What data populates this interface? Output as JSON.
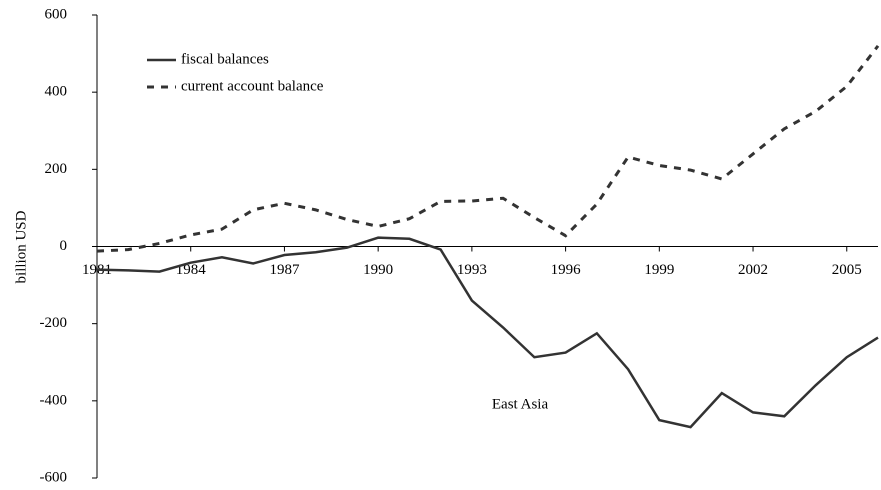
{
  "chart_data": {
    "type": "line",
    "x": [
      1981,
      1982,
      1983,
      1984,
      1985,
      1986,
      1987,
      1988,
      1989,
      1990,
      1991,
      1992,
      1993,
      1994,
      1995,
      1996,
      1997,
      1998,
      1999,
      2000,
      2001,
      2002,
      2003,
      2004,
      2005,
      2006
    ],
    "series": [
      {
        "name": "fiscal balances",
        "color": "#333333",
        "dash": false,
        "values": [
          -60,
          -62,
          -65,
          -42,
          -28,
          -44,
          -22,
          -15,
          -3,
          23,
          20,
          -8,
          -140,
          -210,
          -287,
          -275,
          -225,
          -318,
          -450,
          -468,
          -380,
          -430,
          -440,
          -360,
          -287,
          -236
        ]
      },
      {
        "name": "current account balance",
        "color": "#333333",
        "dash": true,
        "values": [
          -12,
          -8,
          8,
          30,
          45,
          95,
          112,
          95,
          70,
          52,
          72,
          117,
          118,
          125,
          75,
          28,
          110,
          232,
          210,
          198,
          175,
          240,
          305,
          350,
          415,
          520
        ]
      }
    ],
    "xlim": [
      1981,
      2006
    ],
    "xticks": [
      1981,
      1984,
      1987,
      1990,
      1993,
      1996,
      1999,
      2002,
      2005
    ],
    "ylim": [
      -600,
      600
    ],
    "yticks": [
      -600,
      -400,
      -200,
      0,
      200,
      400,
      600
    ],
    "ylabel": "billion USD",
    "xlabel": "East Asia",
    "grid": false,
    "legend": "upper left"
  }
}
